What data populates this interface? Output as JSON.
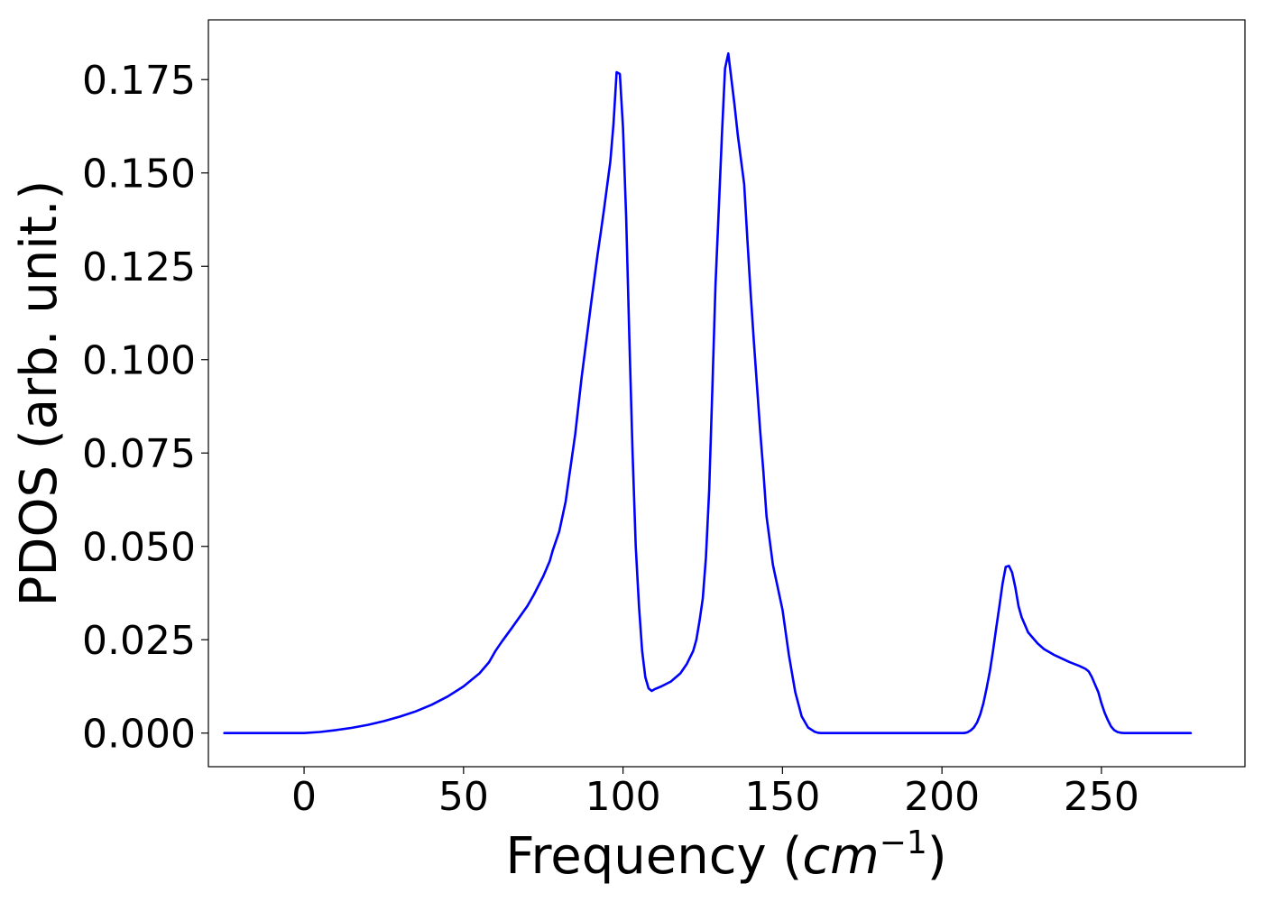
{
  "chart_data": {
    "type": "line",
    "xlabel": "Frequency",
    "xlabel_unit_base": "cm",
    "xlabel_unit_exp": "−1",
    "ylabel": "PDOS (arb. unit.)",
    "xlim": [
      -30,
      295
    ],
    "ylim": [
      -0.009,
      0.191
    ],
    "xticks": [
      0,
      50,
      100,
      150,
      200,
      250
    ],
    "xtick_labels": [
      "0",
      "50",
      "100",
      "150",
      "200",
      "250"
    ],
    "yticks": [
      0.0,
      0.025,
      0.05,
      0.075,
      0.1,
      0.125,
      0.15,
      0.175
    ],
    "ytick_labels": [
      "0.000",
      "0.025",
      "0.050",
      "0.075",
      "0.100",
      "0.125",
      "0.150",
      "0.175"
    ],
    "grid": false,
    "series": [
      {
        "color": "#0000ff",
        "x": [
          -25,
          0,
          5,
          10,
          15,
          20,
          25,
          30,
          35,
          40,
          45,
          50,
          55,
          58,
          60,
          62,
          65,
          70,
          72,
          75,
          77,
          78,
          80,
          82,
          83,
          85,
          87,
          90,
          92,
          93,
          94,
          96,
          97,
          98,
          99,
          100,
          101,
          102,
          103,
          104,
          105,
          106,
          107,
          108,
          109,
          110,
          112,
          115,
          118,
          120,
          122,
          123,
          124,
          125,
          126,
          127,
          128,
          129,
          130,
          131,
          132,
          133,
          134,
          135,
          136,
          138,
          139,
          140,
          141,
          142,
          143,
          144,
          145,
          147,
          150,
          152,
          154,
          156,
          158,
          160,
          161,
          162,
          163,
          164,
          165,
          166,
          167,
          168,
          170,
          180,
          190,
          200,
          205,
          206,
          207,
          208,
          209,
          210,
          211,
          212,
          213,
          214,
          215,
          216,
          217,
          218,
          219,
          220,
          221,
          222,
          223,
          224,
          225,
          226,
          227,
          228,
          230,
          232,
          235,
          240,
          243,
          245,
          246,
          247,
          248,
          249,
          250,
          251,
          252,
          253,
          254,
          255,
          256,
          257,
          258,
          260,
          278
        ],
        "values": [
          0.0,
          0.0,
          0.0003,
          0.0008,
          0.0014,
          0.0022,
          0.0032,
          0.0044,
          0.0058,
          0.0076,
          0.0098,
          0.0125,
          0.016,
          0.019,
          0.022,
          0.0245,
          0.028,
          0.034,
          0.037,
          0.042,
          0.046,
          0.049,
          0.054,
          0.062,
          0.068,
          0.08,
          0.095,
          0.115,
          0.128,
          0.134,
          0.14,
          0.153,
          0.163,
          0.177,
          0.1765,
          0.162,
          0.138,
          0.105,
          0.075,
          0.05,
          0.034,
          0.022,
          0.015,
          0.012,
          0.0113,
          0.0118,
          0.0125,
          0.0138,
          0.016,
          0.0185,
          0.022,
          0.025,
          0.03,
          0.036,
          0.047,
          0.065,
          0.092,
          0.12,
          0.14,
          0.16,
          0.178,
          0.182,
          0.175,
          0.168,
          0.16,
          0.147,
          0.132,
          0.118,
          0.105,
          0.093,
          0.081,
          0.07,
          0.058,
          0.045,
          0.033,
          0.021,
          0.011,
          0.0045,
          0.0015,
          0.0004,
          0.0001,
          0.0,
          0.0,
          0.0,
          0.0,
          0.0,
          0.0,
          0.0,
          0.0,
          0.0,
          0.0,
          0.0,
          0.0,
          0.0,
          0.0,
          0.0002,
          0.0007,
          0.0015,
          0.0028,
          0.005,
          0.008,
          0.012,
          0.0165,
          0.022,
          0.028,
          0.034,
          0.04,
          0.0445,
          0.0448,
          0.043,
          0.039,
          0.034,
          0.031,
          0.029,
          0.027,
          0.026,
          0.024,
          0.0225,
          0.021,
          0.019,
          0.018,
          0.0172,
          0.0165,
          0.015,
          0.013,
          0.011,
          0.008,
          0.0055,
          0.0035,
          0.0018,
          0.0008,
          0.0003,
          0.0001,
          0.0,
          0.0,
          0.0,
          0.0
        ]
      }
    ]
  }
}
